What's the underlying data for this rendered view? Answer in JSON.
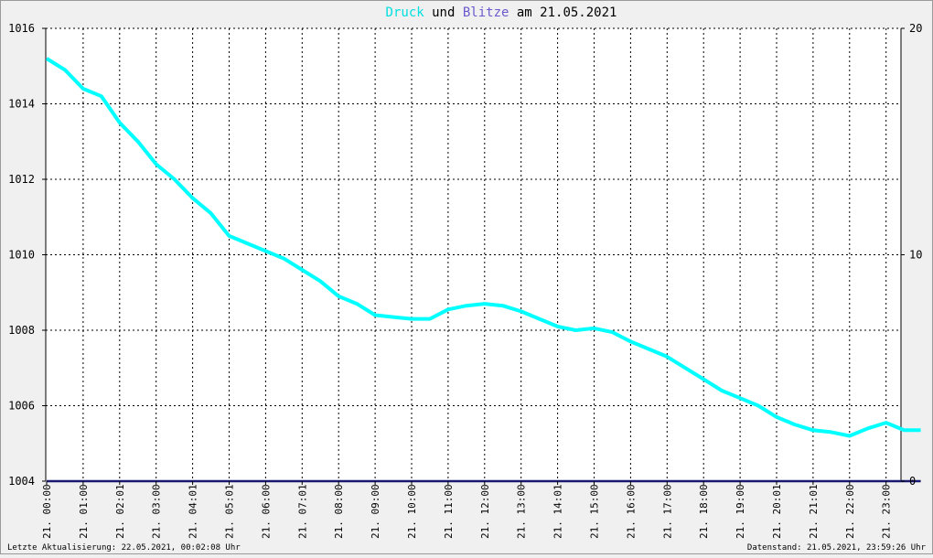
{
  "title": {
    "part1": "Druck",
    "part2": " und ",
    "part3": "Blitze",
    "part4": " am 21.05.2021"
  },
  "footer": {
    "left": "Letzte Aktualisierung: 22.05.2021, 00:02:08 Uhr",
    "right": "Datenstand: 21.05.2021, 23:59:26 Uhr"
  },
  "colors": {
    "background": "#f0f0f0",
    "plot_background": "#ffffff",
    "pressure": "#00ffff",
    "lightning": "#191970",
    "title_druck": "#00e0e0",
    "title_blitze": "#6a5acd",
    "grid": "#000000"
  },
  "chart_data": {
    "type": "line",
    "title": "Druck und Blitze am 21.05.2021",
    "ylim_left": [
      1004,
      1016
    ],
    "ylim_right": [
      0,
      20
    ],
    "y_ticks_left": [
      "1004",
      "1006",
      "1008",
      "1010",
      "1012",
      "1014",
      "1016"
    ],
    "y_ticks_right": [
      "0",
      "10",
      "20"
    ],
    "x_tick_labels": [
      "21. 00:00",
      "21. 01:00",
      "21. 02:01",
      "21. 03:00",
      "21. 04:01",
      "21. 05:01",
      "21. 06:00",
      "21. 07:01",
      "21. 08:00",
      "21. 09:00",
      "21. 10:00",
      "21. 11:00",
      "21. 12:00",
      "21. 13:00",
      "21. 14:01",
      "21. 15:00",
      "21. 16:00",
      "21. 17:00",
      "21. 18:00",
      "21. 19:00",
      "21. 20:01",
      "21. 21:01",
      "21. 22:00",
      "21. 23:00"
    ],
    "grid": true,
    "series": [
      {
        "name": "Druck",
        "axis": "left",
        "x_hours": [
          0,
          0.5,
          1,
          1.5,
          2,
          2.5,
          3,
          3.5,
          4,
          4.5,
          5,
          5.5,
          6,
          6.5,
          7,
          7.5,
          8,
          8.5,
          9,
          9.5,
          10,
          10.5,
          11,
          11.5,
          12,
          12.5,
          13,
          13.5,
          14,
          14.5,
          15,
          15.5,
          16,
          16.5,
          17,
          17.5,
          18,
          18.5,
          19,
          19.5,
          20,
          20.5,
          21,
          21.5,
          22,
          22.5,
          23,
          23.5,
          23.95
        ],
        "values": [
          1015.2,
          1014.9,
          1014.4,
          1014.2,
          1013.5,
          1013.0,
          1012.4,
          1012.0,
          1011.5,
          1011.1,
          1010.5,
          1010.3,
          1010.1,
          1009.9,
          1009.6,
          1009.3,
          1008.9,
          1008.7,
          1008.4,
          1008.35,
          1008.3,
          1008.3,
          1008.55,
          1008.65,
          1008.7,
          1008.65,
          1008.5,
          1008.3,
          1008.1,
          1008.0,
          1008.05,
          1007.95,
          1007.7,
          1007.5,
          1007.3,
          1007.0,
          1006.7,
          1006.4,
          1006.2,
          1006.0,
          1005.7,
          1005.5,
          1005.35,
          1005.3,
          1005.2,
          1005.4,
          1005.55,
          1005.35,
          1005.35
        ]
      },
      {
        "name": "Blitze",
        "axis": "right",
        "x_hours": [
          0,
          23.95
        ],
        "values": [
          0,
          0
        ]
      }
    ]
  }
}
